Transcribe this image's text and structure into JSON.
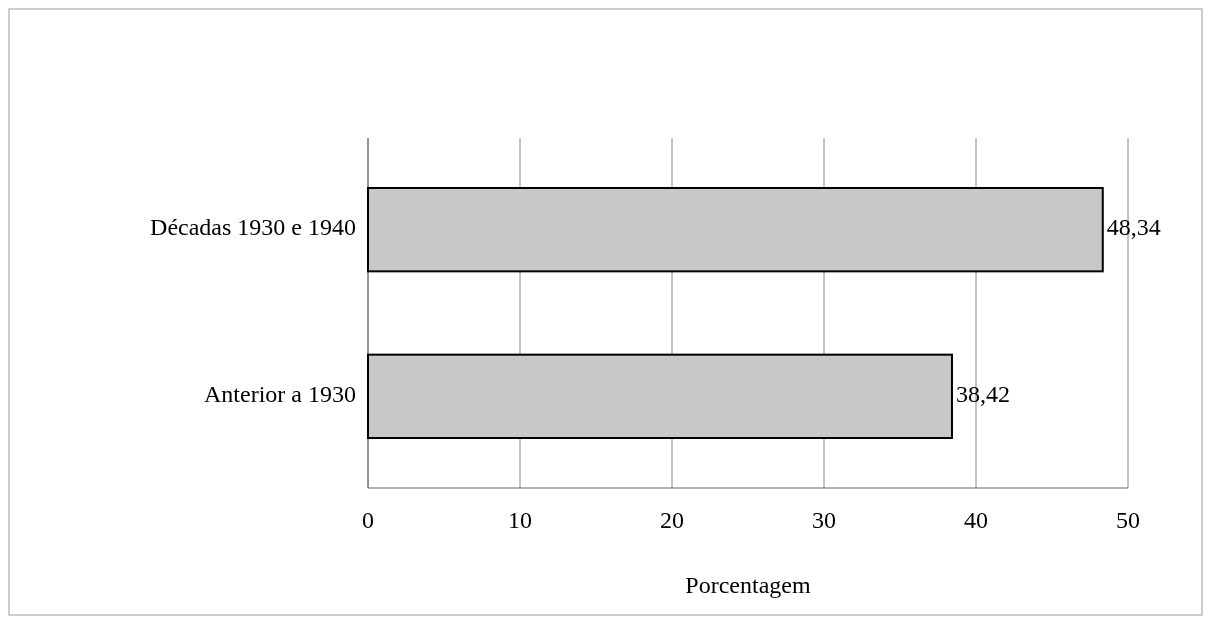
{
  "chart_data": {
    "type": "bar",
    "orientation": "horizontal",
    "categories": [
      "Décadas 1930 e 1940",
      "Anterior a 1930"
    ],
    "values": [
      48.34,
      38.42
    ],
    "value_labels": [
      "48,34",
      "38,42"
    ],
    "color": "#c8c8c8",
    "xlim": [
      0,
      50
    ],
    "xticks": [
      0,
      10,
      20,
      30,
      40,
      50
    ],
    "xlabel": "Porcentagem",
    "grid": "x"
  }
}
